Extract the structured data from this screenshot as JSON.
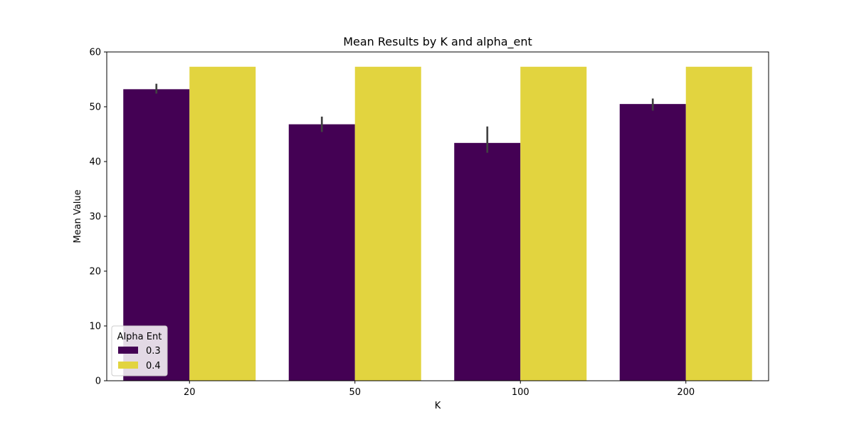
{
  "chart_data": {
    "type": "bar",
    "title": "Mean Results by K and alpha_ent",
    "xlabel": "K",
    "ylabel": "Mean Value",
    "categories": [
      "20",
      "50",
      "100",
      "200"
    ],
    "ylim": [
      0,
      60
    ],
    "yticks": [
      "0",
      "10",
      "20",
      "30",
      "40",
      "50",
      "60"
    ],
    "grid": false,
    "legend": {
      "title": "Alpha Ent",
      "placement": "lower-left"
    },
    "series": [
      {
        "name": "0.3",
        "color": "#440154",
        "values": [
          53.2,
          46.8,
          43.4,
          50.5
        ],
        "error_low": [
          52.4,
          45.4,
          41.6,
          49.3
        ],
        "error_high": [
          54.2,
          48.2,
          46.4,
          51.5
        ]
      },
      {
        "name": "0.4",
        "color": "#e2d43f",
        "values": [
          57.3,
          57.3,
          57.3,
          57.3
        ],
        "error_low": [
          57.3,
          57.3,
          57.3,
          57.3
        ],
        "error_high": [
          57.3,
          57.3,
          57.3,
          57.3
        ]
      }
    ]
  }
}
